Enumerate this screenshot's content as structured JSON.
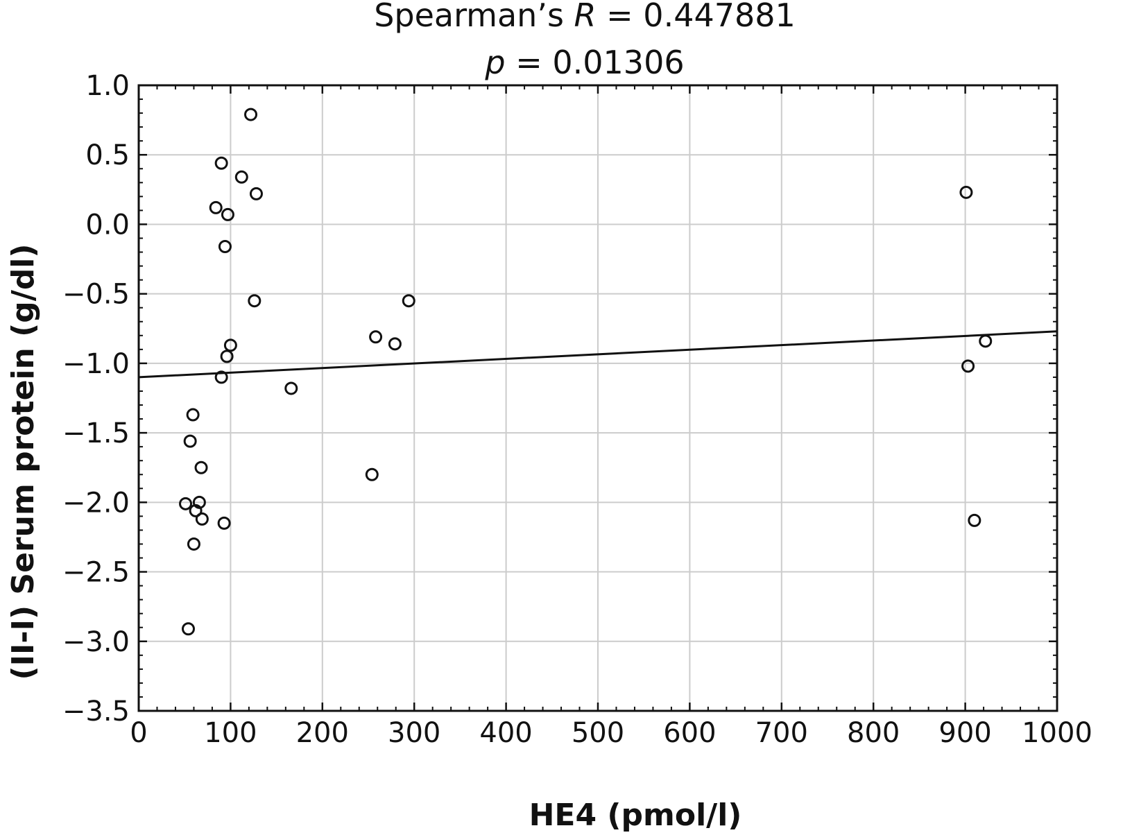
{
  "chart_data": {
    "type": "scatter",
    "title": {
      "line1_prefix": "Spearman’s ",
      "line1_var": "R",
      "line1_suffix": " = 0.447881",
      "line2_var": "p",
      "line2_suffix": " = 0.01306"
    },
    "xlabel": "HE4 (pmol/l)",
    "ylabel": "(II-I) Serum protein (g/dl)",
    "xlim": [
      0,
      1000
    ],
    "ylim": [
      -3.5,
      1.0
    ],
    "xticks": [
      0,
      100,
      200,
      300,
      400,
      500,
      600,
      700,
      800,
      900,
      1000
    ],
    "xtick_labels": [
      "0",
      "100",
      "200",
      "300",
      "400",
      "500",
      "600",
      "700",
      "800",
      "900",
      "1000"
    ],
    "yticks": [
      -3.5,
      -3.0,
      -2.5,
      -2.0,
      -1.5,
      -1.0,
      -0.5,
      0.0,
      0.5,
      1.0
    ],
    "ytick_labels": [
      "−3.5",
      "−3.0",
      "−2.5",
      "−2.0",
      "−1.5",
      "−1.0",
      "−0.5",
      "0.0",
      "0.5",
      "1.0"
    ],
    "grid": true,
    "points": [
      {
        "x": 122,
        "y": 0.79
      },
      {
        "x": 90,
        "y": 0.44
      },
      {
        "x": 112,
        "y": 0.34
      },
      {
        "x": 128,
        "y": 0.22
      },
      {
        "x": 84,
        "y": 0.12
      },
      {
        "x": 97,
        "y": 0.07
      },
      {
        "x": 94,
        "y": -0.16
      },
      {
        "x": 126,
        "y": -0.55
      },
      {
        "x": 100,
        "y": -0.87
      },
      {
        "x": 96,
        "y": -0.95
      },
      {
        "x": 90,
        "y": -1.1
      },
      {
        "x": 166,
        "y": -1.18
      },
      {
        "x": 59,
        "y": -1.37
      },
      {
        "x": 56,
        "y": -1.56
      },
      {
        "x": 68,
        "y": -1.75
      },
      {
        "x": 51,
        "y": -2.01
      },
      {
        "x": 66,
        "y": -2.0
      },
      {
        "x": 62,
        "y": -2.06
      },
      {
        "x": 69,
        "y": -2.12
      },
      {
        "x": 93,
        "y": -2.15
      },
      {
        "x": 60,
        "y": -2.3
      },
      {
        "x": 54,
        "y": -2.91
      },
      {
        "x": 258,
        "y": -0.81
      },
      {
        "x": 279,
        "y": -0.86
      },
      {
        "x": 294,
        "y": -0.55
      },
      {
        "x": 254,
        "y": -1.8
      },
      {
        "x": 901,
        "y": 0.23
      },
      {
        "x": 903,
        "y": -1.02
      },
      {
        "x": 922,
        "y": -0.84
      },
      {
        "x": 910,
        "y": -2.13
      }
    ],
    "regression_line": {
      "x": [
        0,
        1000
      ],
      "y": [
        -1.1,
        -0.77
      ]
    },
    "colors": {
      "marker": "#111111",
      "line": "#111111",
      "grid": "#cccccc",
      "frame": "#111111"
    }
  }
}
